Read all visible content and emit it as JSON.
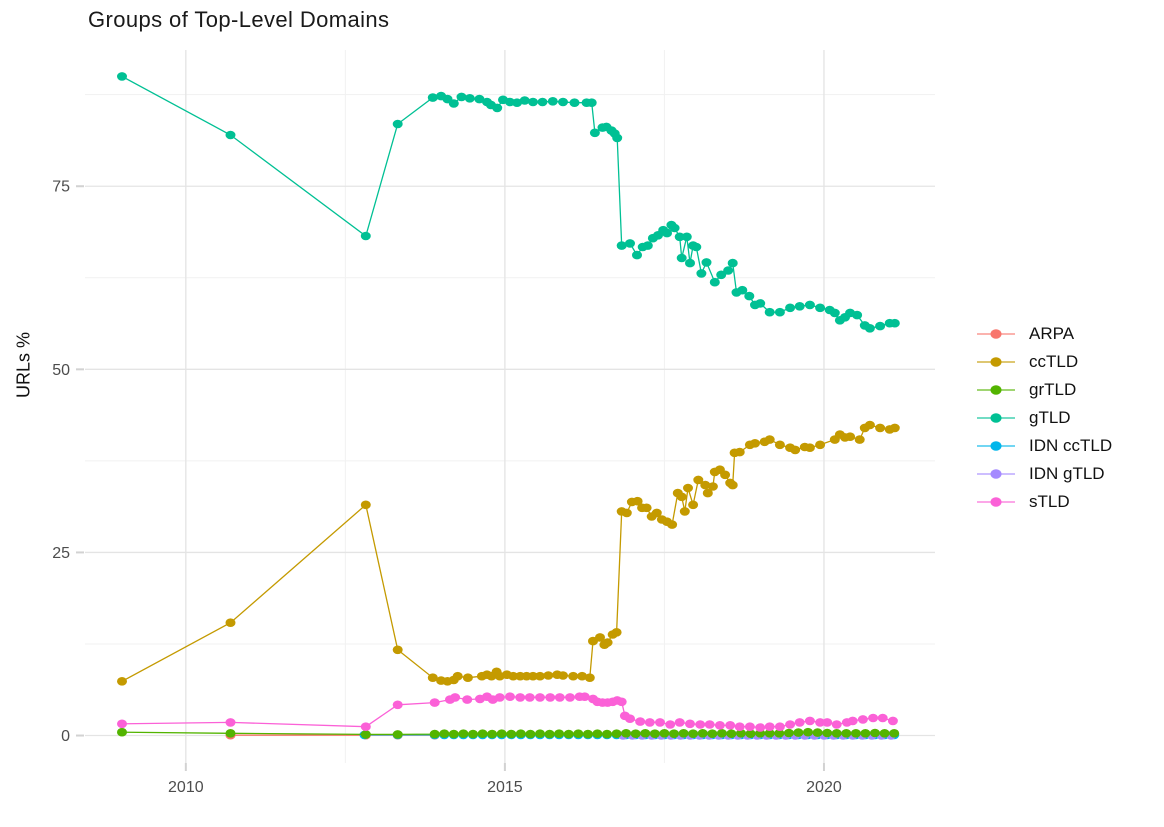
{
  "chart_data": {
    "type": "line",
    "title": "Groups of Top-Level Domains",
    "xlabel": "",
    "ylabel": "URLs %",
    "xlim": [
      2008.42,
      2021.74
    ],
    "ylim": [
      -3.75,
      93.6
    ],
    "grid": "major+minor",
    "legend_position": "right",
    "x_ticks": {
      "major": [
        2010,
        2015,
        2020
      ],
      "minor": [
        2012.5,
        2017.5
      ],
      "labels": [
        "2010",
        "2015",
        "2020"
      ]
    },
    "y_ticks": {
      "major": [
        0,
        25,
        50,
        75
      ],
      "minor": [
        12.5,
        37.5,
        62.5,
        87.5
      ],
      "labels": [
        "0",
        "25",
        "50",
        "75"
      ]
    },
    "draw_order": [
      0,
      4,
      5,
      2,
      1,
      3,
      6
    ],
    "series": [
      {
        "name": "ARPA",
        "color": "#F8766D",
        "points": [
          [
            2010.7,
            0.05
          ],
          [
            2012.82,
            0.05
          ],
          [
            2013.32,
            0.05
          ],
          [
            2013.9,
            0.05
          ]
        ]
      },
      {
        "name": "ccTLD",
        "color": "#C49A00",
        "points": [
          [
            2009.0,
            7.4
          ],
          [
            2010.7,
            15.4
          ],
          [
            2012.82,
            31.5
          ],
          [
            2013.32,
            11.7
          ],
          [
            2013.87,
            7.9
          ],
          [
            2014.0,
            7.5
          ],
          [
            2014.1,
            7.4
          ],
          [
            2014.2,
            7.6
          ],
          [
            2014.26,
            8.1
          ],
          [
            2014.42,
            7.9
          ],
          [
            2014.64,
            8.1
          ],
          [
            2014.72,
            8.3
          ],
          [
            2014.79,
            8.1
          ],
          [
            2014.87,
            8.7
          ],
          [
            2014.92,
            8.1
          ],
          [
            2015.03,
            8.3
          ],
          [
            2015.13,
            8.1
          ],
          [
            2015.24,
            8.1
          ],
          [
            2015.34,
            8.1
          ],
          [
            2015.44,
            8.1
          ],
          [
            2015.55,
            8.1
          ],
          [
            2015.68,
            8.2
          ],
          [
            2015.82,
            8.3
          ],
          [
            2015.91,
            8.2
          ],
          [
            2016.07,
            8.1
          ],
          [
            2016.21,
            8.1
          ],
          [
            2016.33,
            7.9
          ],
          [
            2016.38,
            12.9
          ],
          [
            2016.49,
            13.4
          ],
          [
            2016.56,
            12.4
          ],
          [
            2016.61,
            12.7
          ],
          [
            2016.69,
            13.8
          ],
          [
            2016.75,
            14.1
          ],
          [
            2016.83,
            30.6
          ],
          [
            2016.91,
            30.4
          ],
          [
            2016.99,
            31.9
          ],
          [
            2017.08,
            32.0
          ],
          [
            2017.15,
            31.1
          ],
          [
            2017.22,
            31.1
          ],
          [
            2017.3,
            29.9
          ],
          [
            2017.38,
            30.4
          ],
          [
            2017.46,
            29.5
          ],
          [
            2017.54,
            29.2
          ],
          [
            2017.62,
            28.8
          ],
          [
            2017.71,
            33.1
          ],
          [
            2017.77,
            32.6
          ],
          [
            2017.82,
            30.6
          ],
          [
            2017.87,
            33.8
          ],
          [
            2017.95,
            31.5
          ],
          [
            2018.03,
            34.9
          ],
          [
            2018.14,
            34.2
          ],
          [
            2018.18,
            33.1
          ],
          [
            2018.26,
            34.0
          ],
          [
            2018.29,
            36.0
          ],
          [
            2018.37,
            36.3
          ],
          [
            2018.45,
            35.6
          ],
          [
            2018.53,
            34.5
          ],
          [
            2018.57,
            34.2
          ],
          [
            2018.6,
            38.6
          ],
          [
            2018.68,
            38.7
          ],
          [
            2018.84,
            39.7
          ],
          [
            2018.92,
            39.9
          ],
          [
            2019.07,
            40.1
          ],
          [
            2019.15,
            40.4
          ],
          [
            2019.31,
            39.7
          ],
          [
            2019.47,
            39.3
          ],
          [
            2019.55,
            39.0
          ],
          [
            2019.7,
            39.4
          ],
          [
            2019.78,
            39.3
          ],
          [
            2019.94,
            39.7
          ],
          [
            2020.17,
            40.4
          ],
          [
            2020.25,
            41.1
          ],
          [
            2020.33,
            40.7
          ],
          [
            2020.41,
            40.8
          ],
          [
            2020.56,
            40.4
          ],
          [
            2020.64,
            42.0
          ],
          [
            2020.72,
            42.4
          ],
          [
            2020.88,
            42.0
          ],
          [
            2021.03,
            41.8
          ],
          [
            2021.11,
            42.0
          ]
        ]
      },
      {
        "name": "grTLD",
        "color": "#53B400",
        "points": [
          [
            2009.0,
            0.45
          ],
          [
            2010.7,
            0.3
          ],
          [
            2012.82,
            0.15
          ],
          [
            2013.32,
            0.15
          ],
          [
            2013.9,
            0.2
          ],
          [
            2014.05,
            0.25
          ],
          [
            2014.2,
            0.2
          ],
          [
            2014.35,
            0.25
          ],
          [
            2014.5,
            0.2
          ],
          [
            2014.65,
            0.25
          ],
          [
            2014.8,
            0.2
          ],
          [
            2014.95,
            0.25
          ],
          [
            2015.1,
            0.2
          ],
          [
            2015.25,
            0.25
          ],
          [
            2015.4,
            0.2
          ],
          [
            2015.55,
            0.25
          ],
          [
            2015.7,
            0.2
          ],
          [
            2015.85,
            0.25
          ],
          [
            2016.0,
            0.2
          ],
          [
            2016.15,
            0.25
          ],
          [
            2016.3,
            0.2
          ],
          [
            2016.45,
            0.25
          ],
          [
            2016.6,
            0.2
          ],
          [
            2016.75,
            0.25
          ],
          [
            2016.9,
            0.3
          ],
          [
            2017.05,
            0.25
          ],
          [
            2017.2,
            0.3
          ],
          [
            2017.35,
            0.25
          ],
          [
            2017.5,
            0.3
          ],
          [
            2017.65,
            0.25
          ],
          [
            2017.8,
            0.3
          ],
          [
            2017.95,
            0.25
          ],
          [
            2018.1,
            0.3
          ],
          [
            2018.25,
            0.25
          ],
          [
            2018.4,
            0.3
          ],
          [
            2018.55,
            0.25
          ],
          [
            2018.7,
            0.3
          ],
          [
            2018.85,
            0.25
          ],
          [
            2019.0,
            0.3
          ],
          [
            2019.15,
            0.3
          ],
          [
            2019.3,
            0.3
          ],
          [
            2019.45,
            0.35
          ],
          [
            2019.6,
            0.4
          ],
          [
            2019.75,
            0.45
          ],
          [
            2019.9,
            0.4
          ],
          [
            2020.05,
            0.35
          ],
          [
            2020.2,
            0.3
          ],
          [
            2020.35,
            0.3
          ],
          [
            2020.5,
            0.3
          ],
          [
            2020.65,
            0.3
          ],
          [
            2020.8,
            0.35
          ],
          [
            2020.95,
            0.3
          ],
          [
            2021.1,
            0.3
          ]
        ]
      },
      {
        "name": "gTLD",
        "color": "#00C094",
        "points": [
          [
            2009.0,
            90.0
          ],
          [
            2010.7,
            82.0
          ],
          [
            2012.82,
            68.2
          ],
          [
            2013.32,
            83.5
          ],
          [
            2013.87,
            87.1
          ],
          [
            2014.0,
            87.3
          ],
          [
            2014.1,
            86.9
          ],
          [
            2014.2,
            86.3
          ],
          [
            2014.32,
            87.2
          ],
          [
            2014.45,
            87.0
          ],
          [
            2014.6,
            86.9
          ],
          [
            2014.72,
            86.5
          ],
          [
            2014.78,
            86.1
          ],
          [
            2014.88,
            85.7
          ],
          [
            2014.97,
            86.8
          ],
          [
            2015.08,
            86.5
          ],
          [
            2015.19,
            86.4
          ],
          [
            2015.31,
            86.7
          ],
          [
            2015.44,
            86.5
          ],
          [
            2015.59,
            86.5
          ],
          [
            2015.75,
            86.6
          ],
          [
            2015.91,
            86.5
          ],
          [
            2016.09,
            86.4
          ],
          [
            2016.28,
            86.4
          ],
          [
            2016.36,
            86.4
          ],
          [
            2016.41,
            82.3
          ],
          [
            2016.53,
            83.0
          ],
          [
            2016.59,
            83.1
          ],
          [
            2016.67,
            82.6
          ],
          [
            2016.72,
            82.2
          ],
          [
            2016.76,
            81.6
          ],
          [
            2016.83,
            66.9
          ],
          [
            2016.96,
            67.2
          ],
          [
            2017.07,
            65.6
          ],
          [
            2017.16,
            66.7
          ],
          [
            2017.24,
            66.9
          ],
          [
            2017.32,
            67.9
          ],
          [
            2017.4,
            68.3
          ],
          [
            2017.48,
            69.0
          ],
          [
            2017.54,
            68.6
          ],
          [
            2017.61,
            69.7
          ],
          [
            2017.66,
            69.3
          ],
          [
            2017.74,
            68.1
          ],
          [
            2017.77,
            65.2
          ],
          [
            2017.85,
            68.1
          ],
          [
            2017.9,
            64.5
          ],
          [
            2017.95,
            66.9
          ],
          [
            2018.0,
            66.7
          ],
          [
            2018.08,
            63.1
          ],
          [
            2018.16,
            64.6
          ],
          [
            2018.29,
            61.9
          ],
          [
            2018.39,
            62.9
          ],
          [
            2018.5,
            63.5
          ],
          [
            2018.57,
            64.5
          ],
          [
            2018.63,
            60.5
          ],
          [
            2018.72,
            60.8
          ],
          [
            2018.83,
            60.0
          ],
          [
            2018.92,
            58.8
          ],
          [
            2019.0,
            59.0
          ],
          [
            2019.15,
            57.8
          ],
          [
            2019.31,
            57.8
          ],
          [
            2019.47,
            58.4
          ],
          [
            2019.62,
            58.6
          ],
          [
            2019.78,
            58.8
          ],
          [
            2019.94,
            58.4
          ],
          [
            2020.09,
            58.1
          ],
          [
            2020.17,
            57.7
          ],
          [
            2020.25,
            56.7
          ],
          [
            2020.33,
            57.1
          ],
          [
            2020.41,
            57.7
          ],
          [
            2020.52,
            57.4
          ],
          [
            2020.64,
            56.0
          ],
          [
            2020.72,
            55.6
          ],
          [
            2020.88,
            55.9
          ],
          [
            2021.03,
            56.3
          ],
          [
            2021.11,
            56.3
          ]
        ]
      },
      {
        "name": "IDN ccTLD",
        "color": "#00B6EB",
        "points": [
          [
            2012.8,
            0.08
          ],
          [
            2013.32,
            0.08
          ]
        ],
        "fill": {
          "from": 2013.9,
          "to": 2021.1,
          "step": 0.15,
          "v": 0.08
        }
      },
      {
        "name": "IDN gTLD",
        "color": "#A58AFF",
        "points": [],
        "fill": {
          "from": 2016.85,
          "to": 2021.05,
          "step": 0.15,
          "v": 0.02
        }
      },
      {
        "name": "sTLD",
        "color": "#FB61D7",
        "points": [
          [
            2009.0,
            1.6
          ],
          [
            2010.7,
            1.8
          ],
          [
            2012.82,
            1.2
          ],
          [
            2013.32,
            4.2
          ],
          [
            2013.9,
            4.5
          ],
          [
            2014.14,
            4.9
          ],
          [
            2014.22,
            5.2
          ],
          [
            2014.41,
            4.9
          ],
          [
            2014.61,
            5.0
          ],
          [
            2014.72,
            5.3
          ],
          [
            2014.81,
            4.9
          ],
          [
            2014.92,
            5.2
          ],
          [
            2015.08,
            5.3
          ],
          [
            2015.24,
            5.2
          ],
          [
            2015.39,
            5.2
          ],
          [
            2015.55,
            5.2
          ],
          [
            2015.71,
            5.2
          ],
          [
            2015.86,
            5.2
          ],
          [
            2016.02,
            5.2
          ],
          [
            2016.17,
            5.3
          ],
          [
            2016.25,
            5.3
          ],
          [
            2016.38,
            5.0
          ],
          [
            2016.45,
            4.6
          ],
          [
            2016.53,
            4.5
          ],
          [
            2016.61,
            4.5
          ],
          [
            2016.69,
            4.6
          ],
          [
            2016.76,
            4.8
          ],
          [
            2016.83,
            4.6
          ],
          [
            2016.88,
            2.7
          ],
          [
            2016.96,
            2.3
          ],
          [
            2017.12,
            1.9
          ],
          [
            2017.27,
            1.8
          ],
          [
            2017.43,
            1.8
          ],
          [
            2017.59,
            1.5
          ],
          [
            2017.74,
            1.8
          ],
          [
            2017.9,
            1.6
          ],
          [
            2018.06,
            1.5
          ],
          [
            2018.21,
            1.5
          ],
          [
            2018.37,
            1.4
          ],
          [
            2018.53,
            1.4
          ],
          [
            2018.68,
            1.2
          ],
          [
            2018.84,
            1.2
          ],
          [
            2019.0,
            1.1
          ],
          [
            2019.15,
            1.2
          ],
          [
            2019.31,
            1.2
          ],
          [
            2019.47,
            1.5
          ],
          [
            2019.62,
            1.8
          ],
          [
            2019.78,
            2.0
          ],
          [
            2019.94,
            1.8
          ],
          [
            2020.05,
            1.8
          ],
          [
            2020.2,
            1.5
          ],
          [
            2020.36,
            1.8
          ],
          [
            2020.45,
            2.0
          ],
          [
            2020.61,
            2.2
          ],
          [
            2020.77,
            2.4
          ],
          [
            2020.92,
            2.4
          ],
          [
            2021.08,
            2.0
          ]
        ]
      }
    ],
    "style": {
      "grid_major_color": "#E4E4E4",
      "grid_minor_color": "#F1F1F1",
      "tick_color": "#D2D2D2",
      "tick_label_color": "#4D4D4D",
      "title_color": "#1A1A1A"
    }
  }
}
